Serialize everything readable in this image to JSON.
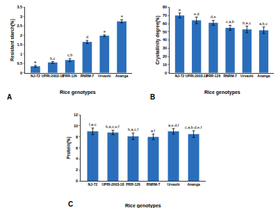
{
  "chart_data": [
    {
      "type": "bar",
      "panel": "A",
      "xlabel": "Rice genotypes",
      "ylabel": "Resistant starch(%)",
      "categories": [
        "NJ-72",
        "UPRI-2003-18",
        "PRR-126",
        "RNRM-7",
        "Urvashi",
        "Ananga"
      ],
      "values": [
        0.35,
        0.55,
        0.68,
        1.65,
        1.98,
        2.75
      ],
      "errors": [
        0.05,
        0.05,
        0.08,
        0.08,
        0.05,
        0.08
      ],
      "annotations": [
        "a",
        "b,c",
        "c,b",
        "d",
        "e",
        "e"
      ],
      "color": "#2a6ebb",
      "ylim": [
        0,
        3.5
      ],
      "yticks": [
        0,
        0.5,
        1,
        1.5,
        2,
        2.5,
        3,
        3.5
      ],
      "grid": false
    },
    {
      "type": "bar",
      "panel": "B",
      "xlabel": "Rice genotypes",
      "ylabel": "Crystallinity degree(%)",
      "categories": [
        "NJ-72",
        "UPRI-2003-18",
        "PRR-126",
        "RNRM-7",
        "Urvashi",
        "Ananga"
      ],
      "values": [
        70,
        64,
        61,
        55,
        53,
        52
      ],
      "errors": [
        3,
        4,
        3,
        3,
        4,
        4
      ],
      "annotations": [
        "e",
        "e,d",
        "d,e",
        "c,a,b",
        "b,a,c",
        "a,b,c"
      ],
      "color": "#2a6ebb",
      "ylim": [
        0,
        80
      ],
      "yticks": [
        0,
        10,
        20,
        30,
        40,
        50,
        60,
        70,
        80
      ],
      "grid": false
    },
    {
      "type": "bar",
      "panel": "C",
      "xlabel": "Rice genotypes",
      "ylabel": "Protein(%)",
      "categories": [
        "NJ-72",
        "UPRI-2003-18",
        "PRR-126",
        "RNRM-7",
        "Urvashi",
        "Ananga"
      ],
      "values": [
        9.0,
        8.8,
        8.1,
        8.0,
        9.0,
        8.5
      ],
      "errors": [
        0.6,
        0.4,
        0.6,
        0.5,
        0.5,
        0.6
      ],
      "annotations": [
        "f,a-c",
        "b,a,c,e,f",
        "b,a,c,f",
        "a,f",
        "a,e,d,f",
        "c,a,b,d,e,f"
      ],
      "color": "#2a6ebb",
      "ylim": [
        0,
        12
      ],
      "yticks": [
        0,
        2,
        4,
        6,
        8,
        10,
        12
      ],
      "grid": false
    }
  ]
}
